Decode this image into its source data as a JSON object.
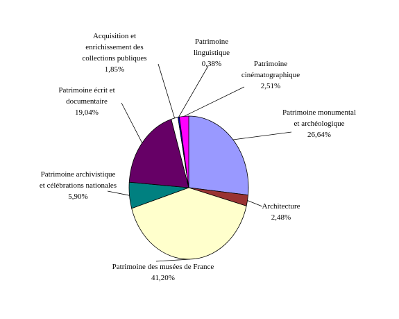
{
  "chart_data": {
    "type": "pie",
    "categories": [
      "Patrimoine monumental et archéologique",
      "Architecture",
      "Patrimoine des musées de France",
      "Patrimoine archivistique et célébrations nationales",
      "Patrimoine écrit et documentaire",
      "Acquisition et enrichissement des collections publiques",
      "Patrimoine linguistique",
      "Patrimoine cinématographique"
    ],
    "values": [
      26.64,
      2.48,
      41.2,
      5.9,
      19.04,
      1.85,
      0.38,
      2.51
    ],
    "value_labels": [
      "26,64%",
      "2,48%",
      "41,20%",
      "5,90%",
      "19,04%",
      "1,85%",
      "0,38%",
      "2,51%"
    ],
    "colors": [
      "#9999ff",
      "#993333",
      "#ffffcc",
      "#008080",
      "#660066",
      "#ffffff",
      "#0000cc",
      "#ff00ff"
    ]
  }
}
